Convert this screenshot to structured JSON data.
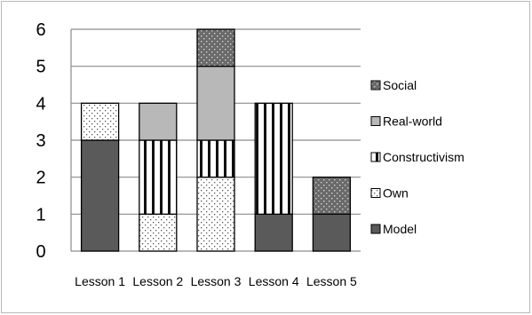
{
  "chart_data": {
    "type": "bar",
    "stacked": true,
    "categories": [
      "Lesson 1",
      "Lesson 2",
      "Lesson 3",
      "Lesson 4",
      "Lesson 5"
    ],
    "series": [
      {
        "name": "Model",
        "values": [
          3,
          0,
          0,
          1,
          1
        ],
        "pattern": "solid-dark"
      },
      {
        "name": "Own",
        "values": [
          1,
          1,
          2,
          0,
          0
        ],
        "pattern": "dots"
      },
      {
        "name": "Constructivism",
        "values": [
          0,
          2,
          1,
          3,
          0
        ],
        "pattern": "vertical-stripes"
      },
      {
        "name": "Real-world",
        "values": [
          0,
          1,
          2,
          0,
          0
        ],
        "pattern": "solid-light"
      },
      {
        "name": "Social",
        "values": [
          0,
          0,
          1,
          0,
          1
        ],
        "pattern": "dotted-dark"
      }
    ],
    "ylim": [
      0,
      6
    ],
    "yticks": [
      0,
      1,
      2,
      3,
      4,
      5,
      6
    ],
    "grid": true,
    "legend_position": "right",
    "title": "",
    "xlabel": "",
    "ylabel": "",
    "colors": {
      "solid_dark": "#5a5a5a",
      "solid_light": "#b8b8b8",
      "grid": "#8c8c8c",
      "bar_border": "#000000"
    }
  }
}
